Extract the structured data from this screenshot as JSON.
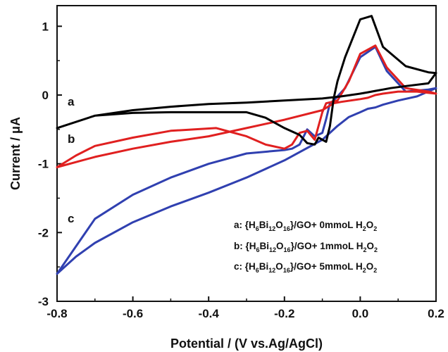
{
  "chart_data": {
    "type": "line",
    "title": "",
    "xlabel": "Potential / (V vs.Ag/AgCl)",
    "ylabel": "Current / μA",
    "xlim": [
      -0.8,
      0.2
    ],
    "ylim": [
      -3,
      1.3
    ],
    "x_ticks": [
      "-0.8",
      "-0.6",
      "-0.4",
      "-0.2",
      "0.0",
      "0.2"
    ],
    "y_ticks": [
      "-3",
      "-2",
      "-1",
      "0",
      "1"
    ],
    "grid": false,
    "legend_position": "bottom-right",
    "legend": [
      {
        "label": "a",
        "text": "a: {H6Bi12O16}/GO+ 0mmoL H2O2"
      },
      {
        "label": "b",
        "text": "b: {H6Bi12O16}/GO+ 1mmoL H2O2"
      },
      {
        "label": "c",
        "text": "c: {H6Bi12O16}/GO+ 5mmoL H2O2"
      }
    ],
    "series": [
      {
        "name": "a",
        "color": "#000000",
        "x": [
          -0.8,
          -0.7,
          -0.6,
          -0.5,
          -0.4,
          -0.3,
          -0.2,
          -0.1,
          -0.05,
          0.0,
          0.02,
          0.04,
          0.06,
          0.08,
          0.12,
          0.18,
          0.2,
          0.18,
          0.12,
          0.06,
          0.03,
          0.0,
          -0.04,
          -0.06,
          -0.07,
          -0.08,
          -0.09,
          -0.11,
          -0.12,
          -0.14,
          -0.16,
          -0.2,
          -0.25,
          -0.3,
          -0.4,
          -0.5,
          -0.6,
          -0.7,
          -0.8
        ],
        "y": [
          -0.48,
          -0.3,
          -0.22,
          -0.17,
          -0.13,
          -0.11,
          -0.08,
          -0.05,
          -0.02,
          0.02,
          0.04,
          0.06,
          0.08,
          0.1,
          0.13,
          0.17,
          0.32,
          0.33,
          0.42,
          0.7,
          1.15,
          1.1,
          0.55,
          0.2,
          -0.05,
          -0.45,
          -0.68,
          -0.62,
          -0.72,
          -0.7,
          -0.58,
          -0.48,
          -0.33,
          -0.25,
          -0.25,
          -0.25,
          -0.26,
          -0.3,
          -0.48
        ]
      },
      {
        "name": "b",
        "color": "#e02020",
        "x": [
          -0.8,
          -0.7,
          -0.6,
          -0.5,
          -0.4,
          -0.3,
          -0.2,
          -0.1,
          -0.07,
          -0.05,
          0.0,
          0.02,
          0.04,
          0.06,
          0.1,
          0.15,
          0.2,
          0.18,
          0.12,
          0.07,
          0.04,
          0.0,
          -0.03,
          -0.06,
          -0.09,
          -0.1,
          -0.12,
          -0.14,
          -0.16,
          -0.18,
          -0.2,
          -0.25,
          -0.3,
          -0.38,
          -0.5,
          -0.6,
          -0.7,
          -0.75,
          -0.8
        ],
        "y": [
          -1.05,
          -0.9,
          -0.78,
          -0.68,
          -0.6,
          -0.48,
          -0.36,
          -0.22,
          -0.12,
          -0.1,
          -0.06,
          -0.04,
          0.0,
          0.02,
          0.05,
          0.05,
          0.02,
          0.05,
          0.1,
          0.4,
          0.72,
          0.6,
          0.2,
          -0.08,
          -0.12,
          -0.25,
          -0.65,
          -0.52,
          -0.55,
          -0.72,
          -0.78,
          -0.72,
          -0.6,
          -0.48,
          -0.52,
          -0.62,
          -0.74,
          -0.88,
          -1.05
        ]
      },
      {
        "name": "c",
        "color": "#3040b0",
        "x": [
          -0.8,
          -0.75,
          -0.7,
          -0.6,
          -0.5,
          -0.4,
          -0.3,
          -0.2,
          -0.1,
          -0.06,
          -0.03,
          0.0,
          0.02,
          0.04,
          0.06,
          0.1,
          0.15,
          0.2,
          0.18,
          0.12,
          0.07,
          0.04,
          0.0,
          -0.04,
          -0.07,
          -0.08,
          -0.09,
          -0.1,
          -0.12,
          -0.14,
          -0.16,
          -0.18,
          -0.2,
          -0.3,
          -0.4,
          -0.5,
          -0.6,
          -0.7,
          -0.8
        ],
        "y": [
          -2.6,
          -2.35,
          -2.15,
          -1.85,
          -1.62,
          -1.42,
          -1.2,
          -0.95,
          -0.65,
          -0.45,
          -0.32,
          -0.25,
          -0.2,
          -0.18,
          -0.14,
          -0.08,
          -0.02,
          0.1,
          0.08,
          0.05,
          0.35,
          0.7,
          0.55,
          0.1,
          -0.08,
          -0.12,
          -0.35,
          -0.55,
          -0.6,
          -0.5,
          -0.72,
          -0.78,
          -0.8,
          -0.85,
          -1.0,
          -1.2,
          -1.45,
          -1.8,
          -2.6
        ]
      }
    ]
  }
}
